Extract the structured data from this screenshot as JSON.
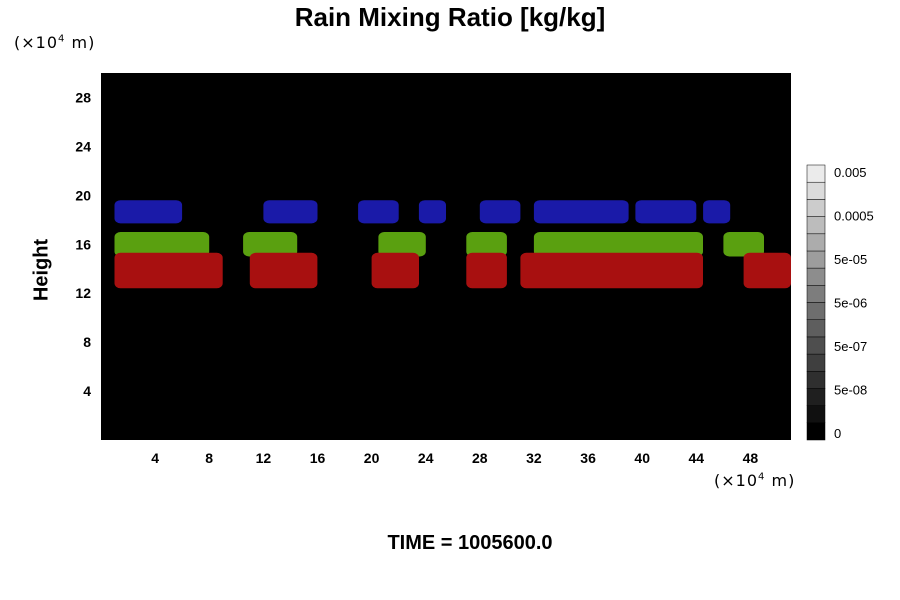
{
  "title": "Rain Mixing Ratio [kg/kg]",
  "y_unit": {
    "prefix": "(×10",
    "exp": "4",
    "suffix": " m)"
  },
  "x_unit": {
    "prefix": "(×10",
    "exp": "4",
    "suffix": " m)"
  },
  "ylabel": "Height",
  "time_label": "TIME = 1005600.0",
  "chart_data": {
    "type": "heatmap",
    "title": "Rain Mixing Ratio [kg/kg]",
    "xlabel": "",
    "ylabel": "Height",
    "xlim": [
      0,
      51
    ],
    "ylim": [
      0,
      30
    ],
    "x_ticks": [
      4,
      8,
      12,
      16,
      20,
      24,
      28,
      32,
      36,
      40,
      44,
      48
    ],
    "y_ticks": [
      4,
      8,
      12,
      16,
      20,
      24,
      28
    ],
    "background_color": "#000000",
    "colorbar": {
      "labels": [
        "0",
        "5e-08",
        "5e-07",
        "5e-06",
        "5e-05",
        "0.0005",
        "0.005"
      ],
      "levels": 16,
      "colors": [
        "#000000",
        "#ffffff"
      ]
    },
    "series": [
      {
        "color": "#1a1aa8",
        "bands": [
          [
            1,
            6
          ],
          [
            12,
            16
          ],
          [
            19,
            22
          ],
          [
            23.5,
            25.5
          ],
          [
            28,
            31
          ],
          [
            32,
            39
          ],
          [
            39.5,
            44
          ],
          [
            44.5,
            46.5
          ]
        ],
        "ymin": 17.7,
        "ymax": 19.6
      },
      {
        "color": "#5aa010",
        "bands": [
          [
            1,
            8
          ],
          [
            10.5,
            14.5
          ],
          [
            20.5,
            24
          ],
          [
            27,
            30
          ],
          [
            32,
            44.5
          ],
          [
            46,
            49
          ]
        ],
        "ymin": 15.0,
        "ymax": 17.0
      },
      {
        "color": "#a81010",
        "bands": [
          [
            1,
            9
          ],
          [
            11,
            16
          ],
          [
            20,
            23.5
          ],
          [
            27,
            30
          ],
          [
            31,
            44.5
          ],
          [
            47.5,
            51
          ]
        ],
        "ymin": 12.4,
        "ymax": 15.3
      }
    ]
  }
}
